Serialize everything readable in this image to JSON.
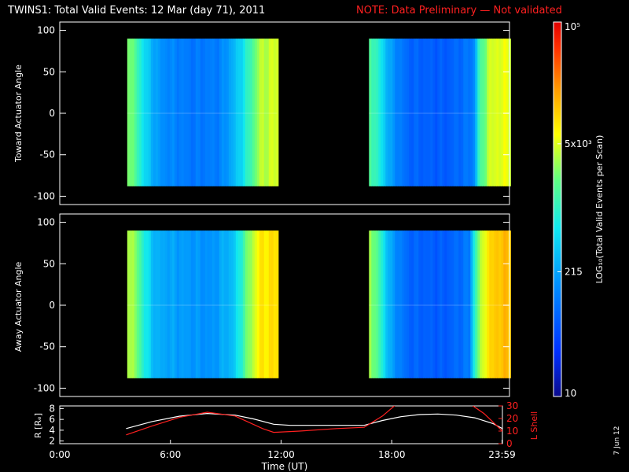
{
  "header": {
    "title": "TWINS1: Total Valid Events: 12 Mar (day  71), 2011",
    "note": "NOTE: Data Preliminary — Not validated"
  },
  "colors": {
    "note": "#ff2020",
    "bg": "#000000",
    "axes": "#ffffff",
    "lshell": "#ff2020",
    "radius": "#ffffff"
  },
  "footer": {
    "stamp": "7 Jun 12"
  },
  "chart_data": [
    {
      "type": "heatmap",
      "ylabel": "Toward Actuator Angle",
      "xlim": [
        0,
        24
      ],
      "ylim": [
        -110,
        110
      ],
      "yticks": [
        "100",
        "50",
        "0",
        "-50",
        "-100"
      ],
      "angle_range": [
        -88,
        90
      ],
      "scale": "log",
      "blocks": [
        {
          "t": [
            3.6,
            11.6
          ],
          "profile": [
            [
              3.6,
              0.62
            ],
            [
              4.1,
              0.52
            ],
            [
              4.6,
              0.4
            ],
            [
              5.3,
              0.3
            ],
            [
              7.0,
              0.25
            ],
            [
              8.5,
              0.27
            ],
            [
              9.3,
              0.37
            ],
            [
              10.0,
              0.5
            ],
            [
              10.6,
              0.64
            ],
            [
              11.6,
              0.67
            ]
          ]
        },
        {
          "t": [
            16.5,
            24
          ],
          "profile": [
            [
              16.5,
              0.56
            ],
            [
              17.0,
              0.47
            ],
            [
              17.6,
              0.32
            ],
            [
              18.5,
              0.22
            ],
            [
              20.5,
              0.2
            ],
            [
              22.0,
              0.26
            ],
            [
              22.3,
              0.5
            ],
            [
              22.8,
              0.65
            ],
            [
              23.3,
              0.68
            ],
            [
              24,
              0.68
            ]
          ]
        }
      ]
    },
    {
      "type": "heatmap",
      "ylabel": "Away Actuator Angle",
      "xlim": [
        0,
        24
      ],
      "ylim": [
        -110,
        110
      ],
      "yticks": [
        "100",
        "50",
        "0",
        "-50",
        "-100"
      ],
      "angle_range": [
        -88,
        90
      ],
      "scale": "log",
      "blocks": [
        {
          "t": [
            3.6,
            11.6
          ],
          "profile": [
            [
              3.6,
              0.66
            ],
            [
              4.1,
              0.58
            ],
            [
              4.5,
              0.46
            ],
            [
              5.1,
              0.35
            ],
            [
              6.5,
              0.32
            ],
            [
              8.0,
              0.3
            ],
            [
              9.2,
              0.38
            ],
            [
              10.0,
              0.6
            ],
            [
              10.6,
              0.72
            ],
            [
              11.6,
              0.74
            ]
          ]
        },
        {
          "t": [
            16.5,
            24
          ],
          "profile": [
            [
              16.5,
              0.64
            ],
            [
              17.0,
              0.52
            ],
            [
              17.6,
              0.33
            ],
            [
              18.5,
              0.22
            ],
            [
              20.5,
              0.2
            ],
            [
              21.8,
              0.26
            ],
            [
              22.1,
              0.52
            ],
            [
              22.6,
              0.7
            ],
            [
              23.2,
              0.77
            ],
            [
              24,
              0.78
            ]
          ]
        }
      ]
    },
    {
      "type": "line",
      "xlabel": "Time (UT)",
      "xticks": [
        "0:00",
        "6:00",
        "12:00",
        "18:00",
        "23:59"
      ],
      "xtick_values": [
        0,
        6,
        12,
        18,
        23.98
      ],
      "xlim": [
        0,
        24
      ],
      "left_axis": {
        "label": "R [Rₑ]",
        "ylim": [
          1.5,
          8.5
        ],
        "ticks": [
          "8",
          "6",
          "4",
          "2"
        ],
        "tick_values": [
          8,
          6,
          4,
          2
        ]
      },
      "right_axis": {
        "label": "L Shell",
        "ylim": [
          0,
          30
        ],
        "ticks": [
          "30",
          "20",
          "10",
          "0"
        ],
        "tick_values": [
          30,
          20,
          10,
          0
        ]
      },
      "series": [
        {
          "axis": "left",
          "color": "#ffffff",
          "x": [
            3.6,
            5,
            6.5,
            8,
            9.5,
            10.5,
            11.6,
            12.5,
            14,
            16.5,
            17.5,
            18.5,
            19.5,
            20.5,
            21.5,
            22.5,
            23.5,
            24
          ],
          "y": [
            4.3,
            5.6,
            6.6,
            7.1,
            6.8,
            6.1,
            5.1,
            4.9,
            4.9,
            4.9,
            5.8,
            6.5,
            6.9,
            7.0,
            6.8,
            6.3,
            5.2,
            4.3
          ]
        },
        {
          "axis": "right",
          "color": "#ff2020",
          "x": [
            3.6,
            5,
            6.5,
            8,
            9.5,
            11,
            11.6,
            13,
            15,
            16.5,
            17.5,
            18.3,
            null,
            22.4,
            23,
            24
          ],
          "y": [
            7,
            14,
            21,
            25,
            22,
            12,
            9,
            10,
            12,
            13,
            22,
            32,
            null,
            30,
            24,
            10
          ]
        }
      ]
    },
    {
      "type": "colorbar",
      "label": "LOG₁₀(Total Valid Events per Scan)",
      "scale": "log",
      "range": [
        10,
        100000
      ],
      "tick_labels": [
        "10⁵",
        "5x10³",
        "215",
        "10"
      ],
      "tick_values": [
        100000,
        5000,
        215,
        10
      ]
    }
  ]
}
